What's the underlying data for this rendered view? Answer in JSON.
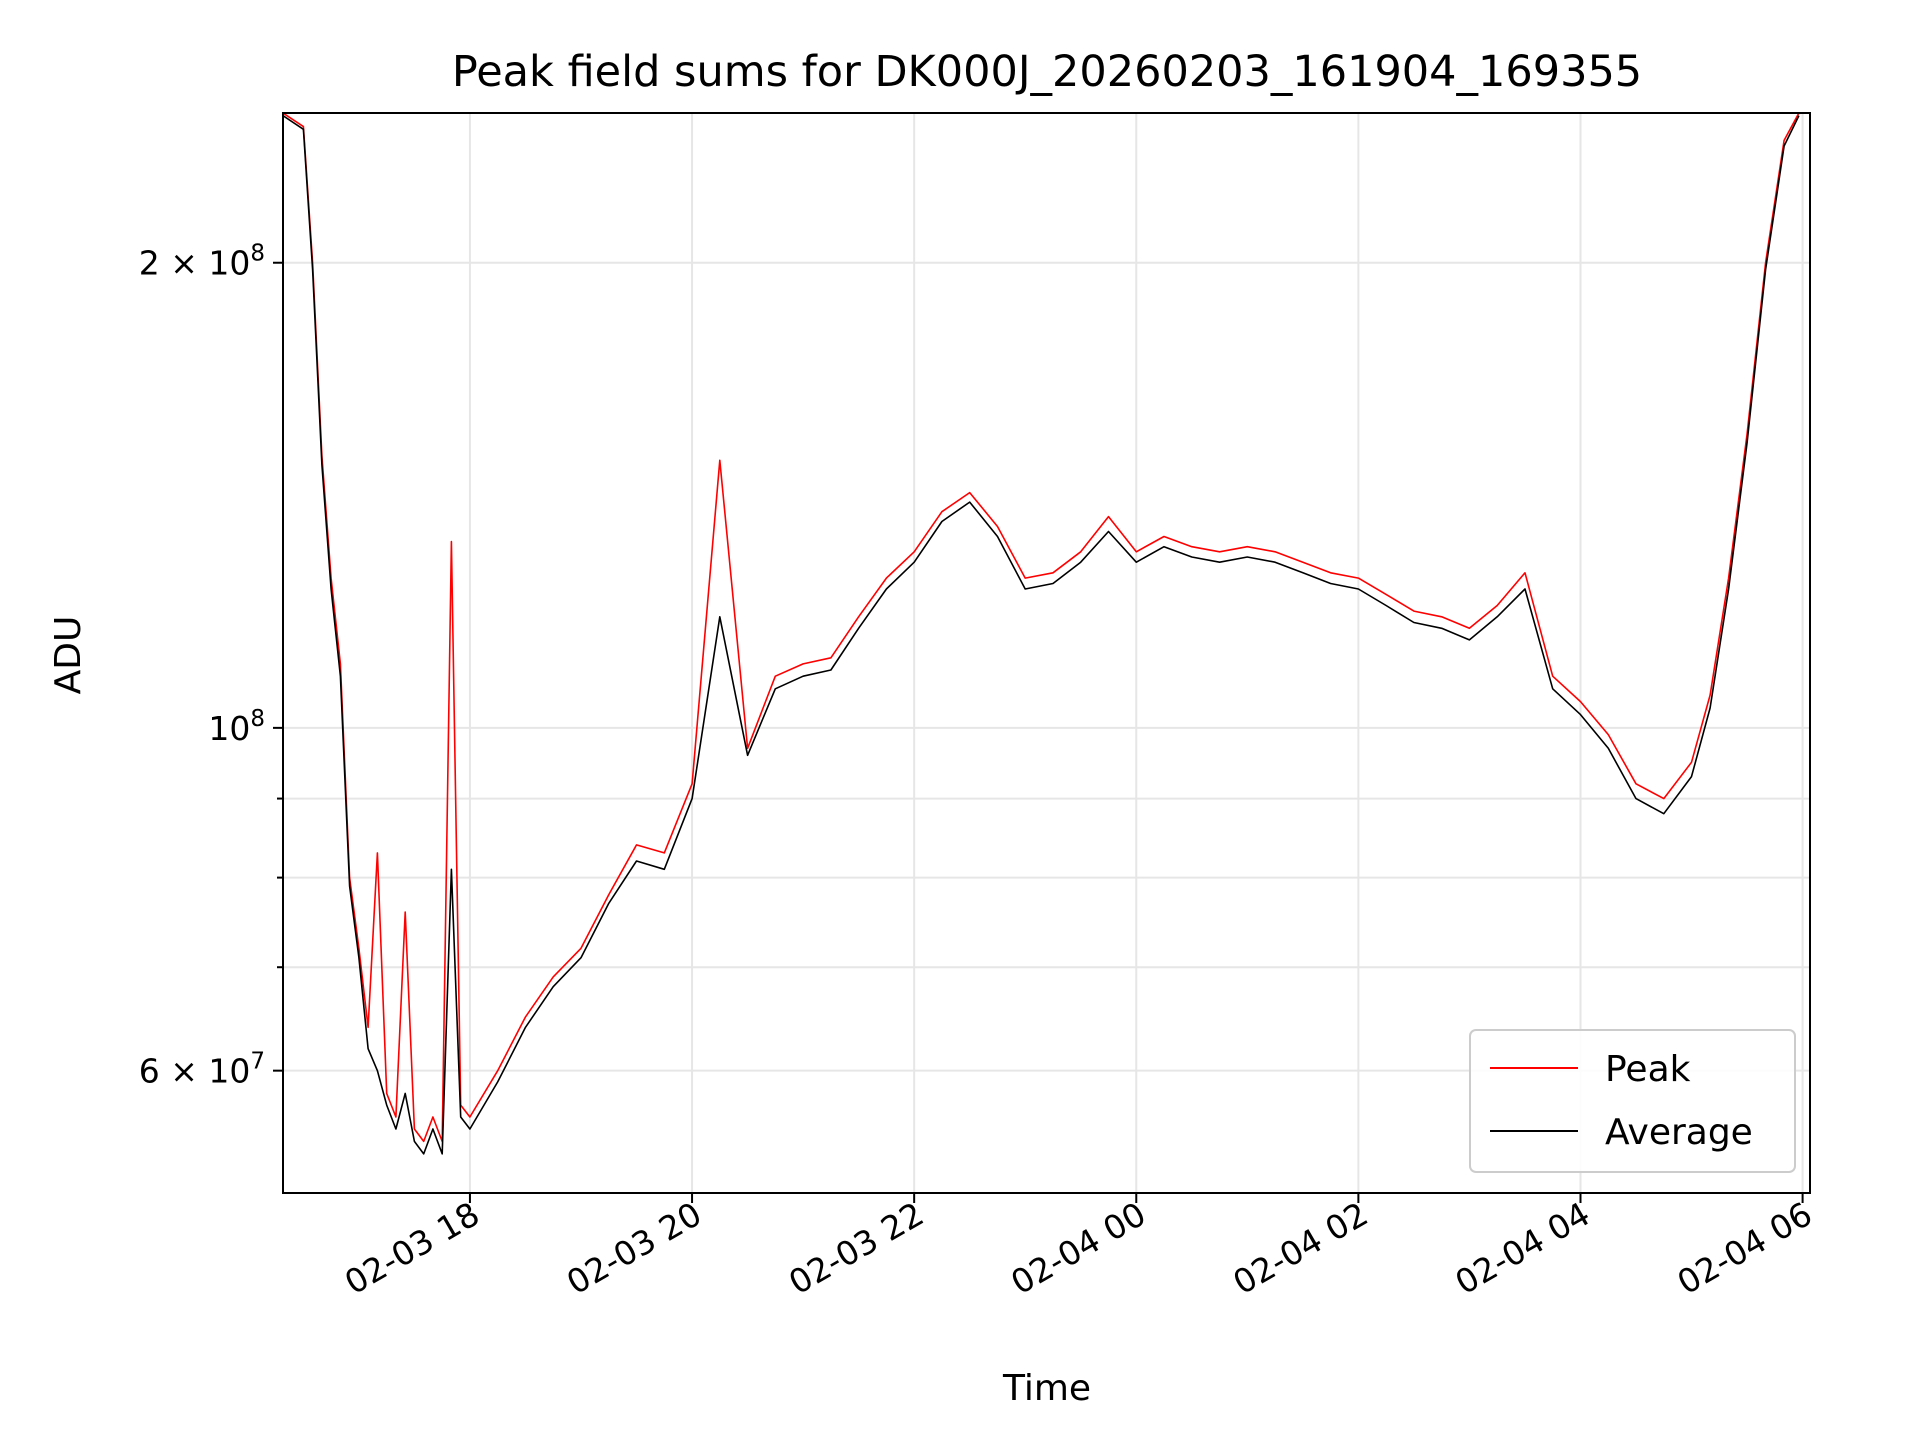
{
  "chart_data": {
    "type": "line",
    "title": "Peak field sums for DK000J_20260203_161904_169355",
    "xlabel": "Time",
    "ylabel": "ADU",
    "yscale": "log",
    "ylim": [
      50000000,
      250000000
    ],
    "xlim": [
      "02-03 16:19",
      "02-04 06:04"
    ],
    "x_ticks": [
      {
        "t": "02-03 18:00",
        "label": "02-03 18"
      },
      {
        "t": "02-03 20:00",
        "label": "02-03 20"
      },
      {
        "t": "02-03 22:00",
        "label": "02-03 22"
      },
      {
        "t": "02-04 00:00",
        "label": "02-04 00"
      },
      {
        "t": "02-04 02:00",
        "label": "02-04 02"
      },
      {
        "t": "02-04 04:00",
        "label": "02-04 04"
      },
      {
        "t": "02-04 06:00",
        "label": "02-04 06"
      }
    ],
    "y_ticks": [
      {
        "v": 60000000,
        "base": "6 × 10",
        "exp": "7"
      },
      {
        "v": 100000000,
        "base": "10",
        "exp": "8"
      },
      {
        "v": 200000000,
        "base": "2 × 10",
        "exp": "8"
      }
    ],
    "y_minor_ticks": [
      70000000,
      80000000,
      90000000
    ],
    "grid": true,
    "legend_position": "bottom-right",
    "series": [
      {
        "name": "Peak",
        "color": "#ff0000",
        "x": [
          "02-03 16:19",
          "02-03 16:30",
          "02-03 16:35",
          "02-03 16:40",
          "02-03 16:45",
          "02-03 16:50",
          "02-03 16:55",
          "02-03 17:00",
          "02-03 17:05",
          "02-03 17:10",
          "02-03 17:15",
          "02-03 17:20",
          "02-03 17:25",
          "02-03 17:30",
          "02-03 17:35",
          "02-03 17:40",
          "02-03 17:45",
          "02-03 17:50",
          "02-03 17:55",
          "02-03 18:00",
          "02-03 18:15",
          "02-03 18:30",
          "02-03 18:45",
          "02-03 19:00",
          "02-03 19:15",
          "02-03 19:30",
          "02-03 19:45",
          "02-03 20:00",
          "02-03 20:15",
          "02-03 20:30",
          "02-03 20:45",
          "02-03 21:00",
          "02-03 21:15",
          "02-03 21:30",
          "02-03 21:45",
          "02-03 22:00",
          "02-03 22:15",
          "02-03 22:30",
          "02-03 22:45",
          "02-03 23:00",
          "02-03 23:15",
          "02-03 23:30",
          "02-03 23:45",
          "02-04 00:00",
          "02-04 00:15",
          "02-04 00:30",
          "02-04 00:45",
          "02-04 01:00",
          "02-04 01:15",
          "02-04 01:30",
          "02-04 01:45",
          "02-04 02:00",
          "02-04 02:15",
          "02-04 02:30",
          "02-04 02:45",
          "02-04 03:00",
          "02-04 03:15",
          "02-04 03:30",
          "02-04 03:45",
          "02-04 04:00",
          "02-04 04:15",
          "02-04 04:30",
          "02-04 04:45",
          "02-04 05:00",
          "02-04 05:10",
          "02-04 05:20",
          "02-04 05:30",
          "02-04 05:40",
          "02-04 05:50",
          "02-04 05:58"
        ],
        "y": [
          250000000,
          245000000,
          200000000,
          150000000,
          125000000,
          110000000,
          80000000,
          72000000,
          64000000,
          83000000,
          58000000,
          56000000,
          76000000,
          55000000,
          54000000,
          56000000,
          54000000,
          132000000,
          57000000,
          56000000,
          60000000,
          65000000,
          69000000,
          72000000,
          78000000,
          84000000,
          83000000,
          92000000,
          149000000,
          97000000,
          108000000,
          110000000,
          111000000,
          118000000,
          125000000,
          130000000,
          138000000,
          142000000,
          135000000,
          125000000,
          126000000,
          130000000,
          137000000,
          130000000,
          133000000,
          131000000,
          130000000,
          131000000,
          130000000,
          128000000,
          126000000,
          125000000,
          122000000,
          119000000,
          118000000,
          116000000,
          120000000,
          126000000,
          108000000,
          104000000,
          99000000,
          92000000,
          90000000,
          95000000,
          105000000,
          125000000,
          155000000,
          200000000,
          240000000,
          250000000
        ]
      },
      {
        "name": "Average",
        "color": "#000000",
        "x": [
          "02-03 16:19",
          "02-03 16:30",
          "02-03 16:35",
          "02-03 16:40",
          "02-03 16:45",
          "02-03 16:50",
          "02-03 16:55",
          "02-03 17:00",
          "02-03 17:05",
          "02-03 17:10",
          "02-03 17:15",
          "02-03 17:20",
          "02-03 17:25",
          "02-03 17:30",
          "02-03 17:35",
          "02-03 17:40",
          "02-03 17:45",
          "02-03 17:50",
          "02-03 17:55",
          "02-03 18:00",
          "02-03 18:15",
          "02-03 18:30",
          "02-03 18:45",
          "02-03 19:00",
          "02-03 19:15",
          "02-03 19:30",
          "02-03 19:45",
          "02-03 20:00",
          "02-03 20:15",
          "02-03 20:30",
          "02-03 20:45",
          "02-03 21:00",
          "02-03 21:15",
          "02-03 21:30",
          "02-03 21:45",
          "02-03 22:00",
          "02-03 22:15",
          "02-03 22:30",
          "02-03 22:45",
          "02-03 23:00",
          "02-03 23:15",
          "02-03 23:30",
          "02-03 23:45",
          "02-04 00:00",
          "02-04 00:15",
          "02-04 00:30",
          "02-04 00:45",
          "02-04 01:00",
          "02-04 01:15",
          "02-04 01:30",
          "02-04 01:45",
          "02-04 02:00",
          "02-04 02:15",
          "02-04 02:30",
          "02-04 02:45",
          "02-04 03:00",
          "02-04 03:15",
          "02-04 03:30",
          "02-04 03:45",
          "02-04 04:00",
          "02-04 04:15",
          "02-04 04:30",
          "02-04 04:45",
          "02-04 05:00",
          "02-04 05:10",
          "02-04 05:20",
          "02-04 05:30",
          "02-04 05:40",
          "02-04 05:50",
          "02-04 05:58"
        ],
        "y": [
          249000000,
          244000000,
          198000000,
          148000000,
          123000000,
          108000000,
          79000000,
          71000000,
          62000000,
          60000000,
          57000000,
          55000000,
          58000000,
          54000000,
          53000000,
          55000000,
          53000000,
          81000000,
          56000000,
          55000000,
          59000000,
          64000000,
          68000000,
          71000000,
          77000000,
          82000000,
          81000000,
          90000000,
          118000000,
          96000000,
          106000000,
          108000000,
          109000000,
          116000000,
          123000000,
          128000000,
          136000000,
          140000000,
          133000000,
          123000000,
          124000000,
          128000000,
          134000000,
          128000000,
          131000000,
          129000000,
          128000000,
          129000000,
          128000000,
          126000000,
          124000000,
          123000000,
          120000000,
          117000000,
          116000000,
          114000000,
          118000000,
          123000000,
          106000000,
          102000000,
          97000000,
          90000000,
          88000000,
          93000000,
          103000000,
          123000000,
          153000000,
          198000000,
          238000000,
          249000000
        ]
      }
    ]
  }
}
